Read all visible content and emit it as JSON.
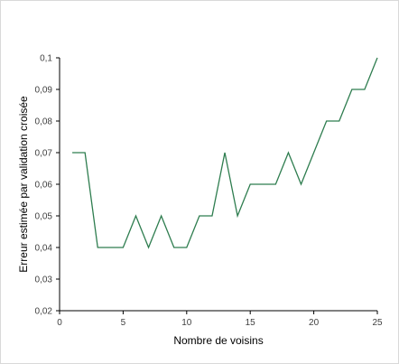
{
  "chart_data": {
    "type": "line",
    "title": "",
    "xlabel": "Nombre de voisins",
    "ylabel": "Erreur estimée par validation croisée",
    "xlim": [
      0,
      25
    ],
    "ylim": [
      0.02,
      0.1
    ],
    "x_ticks": [
      0,
      5,
      10,
      15,
      20,
      25
    ],
    "x_tick_labels": [
      "0",
      "5",
      "10",
      "15",
      "20",
      "25"
    ],
    "y_ticks": [
      0.02,
      0.03,
      0.04,
      0.05,
      0.06,
      0.07,
      0.08,
      0.09,
      0.1
    ],
    "y_tick_labels": [
      "0,02",
      "0,03",
      "0,04",
      "0,05",
      "0,06",
      "0,07",
      "0,08",
      "0,09",
      "0,1"
    ],
    "grid": false,
    "legend": "none",
    "series": [
      {
        "color": "#2e7d4f",
        "x": [
          1,
          2,
          3,
          4,
          5,
          6,
          7,
          8,
          9,
          10,
          11,
          12,
          13,
          14,
          15,
          16,
          17,
          18,
          19,
          20,
          21,
          22,
          23,
          24,
          25
        ],
        "y": [
          0.07,
          0.07,
          0.04,
          0.04,
          0.04,
          0.05,
          0.04,
          0.05,
          0.04,
          0.04,
          0.05,
          0.05,
          0.07,
          0.05,
          0.06,
          0.06,
          0.06,
          0.07,
          0.06,
          0.07,
          0.08,
          0.08,
          0.09,
          0.09,
          0.1
        ]
      }
    ],
    "axis_color": "#000000",
    "tick_label_color": "#404040"
  }
}
